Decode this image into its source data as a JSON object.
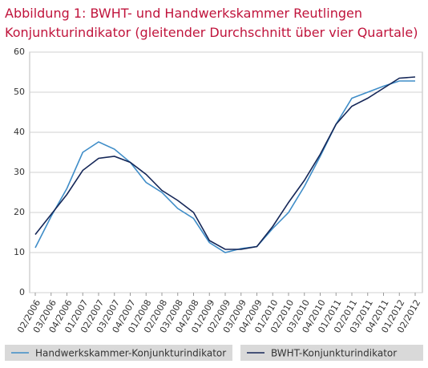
{
  "chart_data": {
    "type": "line",
    "title": "Abbildung 1: BWHT- und Handwerkskammer  Reutlingen",
    "subtitle": "Konjunkturindikator (gleitender Durchschnitt über vier Quartale)",
    "categories": [
      "02/2006",
      "03/2006",
      "04/2006",
      "01/2007",
      "02/2007",
      "03/2007",
      "04/2007",
      "01/2008",
      "02/2008",
      "03/2008",
      "04/2008",
      "01/2009",
      "02/2009",
      "03/2009",
      "04/2009",
      "01/2010",
      "02/2010",
      "03/2010",
      "04/2010",
      "01/2011",
      "02/2011",
      "03/2011",
      "04/2011",
      "01/2012",
      "02/2012"
    ],
    "series": [
      {
        "name": "Handwerkskammer-Konjunkturindikator",
        "color": "#3f8dc8",
        "values": [
          11.2,
          19,
          26,
          35,
          37.6,
          35.8,
          32.5,
          27.5,
          25,
          21,
          18.5,
          12.5,
          10,
          11,
          11.5,
          16,
          20,
          26.5,
          34,
          42,
          48.5,
          50,
          51.5,
          52.8,
          52.8
        ]
      },
      {
        "name": "BWHT-Konjunkturindikator",
        "color": "#152758",
        "values": [
          14.5,
          19.5,
          24.5,
          30.5,
          33.5,
          34,
          32.5,
          29.5,
          25.5,
          23,
          20,
          13,
          10.8,
          10.8,
          11.5,
          16.5,
          22.5,
          28,
          34.5,
          42,
          46.5,
          48.5,
          51,
          53.5,
          53.8
        ]
      }
    ],
    "ylim": [
      0,
      60
    ],
    "yticks": [
      0,
      10,
      20,
      30,
      40,
      50,
      60
    ],
    "grid": true
  }
}
